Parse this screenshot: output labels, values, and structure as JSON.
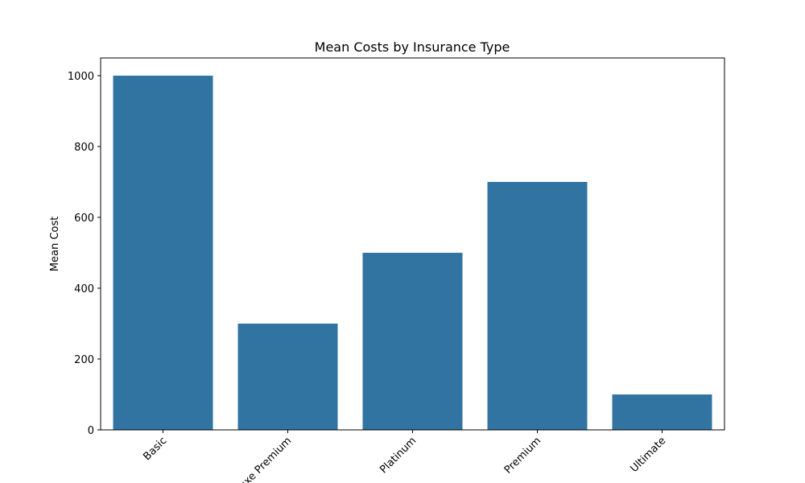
{
  "chart_data": {
    "type": "bar",
    "title": "Mean Costs by Insurance Type",
    "xlabel": "",
    "ylabel": "Mean Cost",
    "categories": [
      "Basic",
      "Deluxe Premium",
      "Platinum",
      "Premium",
      "Ultimate"
    ],
    "values": [
      1000,
      300,
      500,
      700,
      100
    ],
    "ylim": [
      0,
      1050
    ],
    "yticks": [
      0,
      200,
      400,
      600,
      800,
      1000
    ],
    "grid": false,
    "bar_color": "#3274a1"
  }
}
